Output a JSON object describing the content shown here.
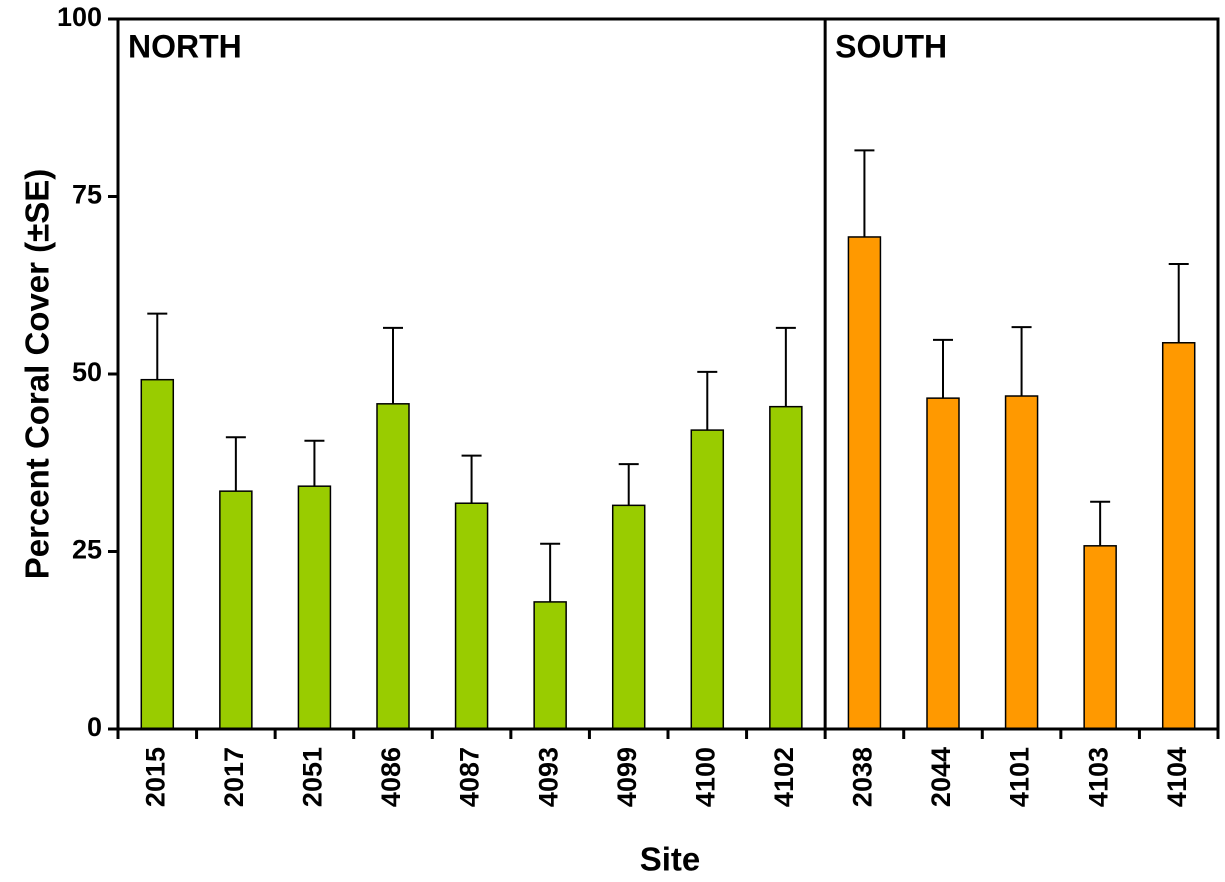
{
  "chart_data": {
    "type": "bar",
    "y_label": "Percent Coral Cover (±SE)",
    "x_label": "Site",
    "ylim": [
      0,
      100
    ],
    "yticks": [
      0,
      25,
      50,
      75,
      100
    ],
    "groups": [
      {
        "name": "NORTH",
        "color": "#99cc00",
        "categories": [
          "2015",
          "2017",
          "2051",
          "4086",
          "4087",
          "4093",
          "4099",
          "4100",
          "4102"
        ],
        "values": [
          49.2,
          33.5,
          34.2,
          45.8,
          31.8,
          17.9,
          31.5,
          42.1,
          45.4
        ],
        "errors": [
          9.3,
          7.6,
          6.4,
          10.7,
          6.7,
          8.2,
          5.8,
          8.2,
          11.1
        ]
      },
      {
        "name": "SOUTH",
        "color": "#ff9900",
        "categories": [
          "2038",
          "2044",
          "4101",
          "4103",
          "4104"
        ],
        "values": [
          69.3,
          46.6,
          46.9,
          25.8,
          54.4
        ],
        "errors": [
          12.2,
          8.2,
          9.7,
          6.2,
          11.1
        ]
      }
    ]
  }
}
